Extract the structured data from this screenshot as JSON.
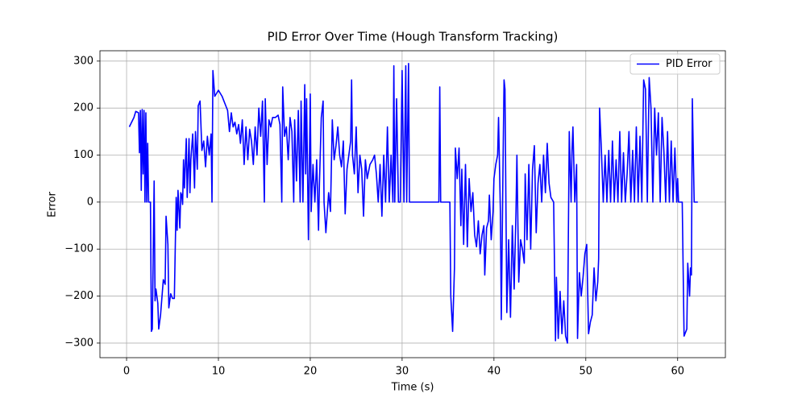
{
  "chart_data": {
    "type": "line",
    "title": "PID Error Over Time (Hough Transform Tracking)",
    "x_label": "Time (s)",
    "y_label": "Error",
    "x": [
      0.3,
      0.8,
      1.0,
      1.3,
      1.4,
      1.5,
      1.6,
      1.7,
      1.8,
      1.9,
      2.0,
      2.1,
      2.2,
      2.3,
      2.4,
      2.6,
      2.7,
      2.8,
      3.0,
      3.1,
      3.2,
      3.4,
      3.5,
      3.7,
      4.0,
      4.2,
      4.3,
      4.5,
      4.6,
      4.8,
      5.0,
      5.2,
      5.4,
      5.5,
      5.6,
      5.8,
      5.9,
      6.0,
      6.1,
      6.2,
      6.3,
      6.5,
      6.6,
      6.8,
      6.9,
      7.0,
      7.2,
      7.4,
      7.5,
      7.7,
      7.8,
      8.0,
      8.2,
      8.4,
      8.6,
      8.8,
      9.0,
      9.2,
      9.3,
      9.4,
      9.6,
      10.0,
      10.4,
      10.6,
      10.8,
      11.0,
      11.2,
      11.4,
      11.6,
      11.8,
      12.0,
      12.2,
      12.4,
      12.6,
      12.8,
      13.0,
      13.2,
      13.4,
      13.6,
      13.8,
      14.0,
      14.2,
      14.4,
      14.6,
      14.8,
      15.0,
      15.1,
      15.3,
      15.5,
      15.7,
      15.9,
      16.2,
      16.5,
      16.7,
      16.9,
      17.0,
      17.2,
      17.4,
      17.6,
      17.8,
      18.0,
      18.2,
      18.3,
      18.5,
      18.7,
      18.9,
      19.0,
      19.2,
      19.4,
      19.5,
      19.6,
      19.8,
      20.0,
      20.1,
      20.3,
      20.5,
      20.7,
      20.9,
      21.0,
      21.2,
      21.4,
      21.5,
      21.7,
      22.0,
      22.2,
      22.4,
      22.6,
      22.8,
      23.0,
      23.2,
      23.4,
      23.6,
      23.8,
      24.0,
      24.2,
      24.4,
      24.5,
      24.6,
      24.8,
      25.0,
      25.2,
      25.4,
      25.6,
      25.8,
      26.0,
      26.2,
      26.5,
      26.8,
      27.0,
      27.2,
      27.4,
      27.6,
      27.8,
      28.0,
      28.2,
      28.4,
      28.6,
      28.8,
      29.0,
      29.1,
      29.2,
      29.4,
      29.6,
      29.8,
      30.0,
      30.2,
      30.4,
      30.5,
      30.7,
      30.8,
      32.0,
      34.0,
      34.1,
      34.2,
      35.2,
      35.3,
      35.5,
      35.7,
      35.8,
      36.0,
      36.2,
      36.4,
      36.5,
      36.7,
      36.9,
      37.1,
      37.3,
      37.5,
      37.7,
      37.9,
      38.1,
      38.3,
      38.5,
      38.7,
      38.9,
      39.0,
      39.2,
      39.4,
      39.5,
      39.7,
      39.9,
      40.0,
      40.2,
      40.4,
      40.5,
      40.7,
      40.8,
      41.0,
      41.1,
      41.2,
      41.4,
      41.6,
      41.8,
      42.0,
      42.2,
      42.4,
      42.5,
      42.7,
      42.9,
      43.1,
      43.3,
      43.4,
      43.6,
      43.8,
      44.0,
      44.2,
      44.4,
      44.6,
      44.8,
      45.0,
      45.2,
      45.4,
      45.6,
      45.8,
      46.0,
      46.2,
      46.5,
      46.7,
      46.8,
      47.0,
      47.2,
      47.4,
      47.6,
      47.8,
      48.0,
      48.2,
      48.4,
      48.5,
      48.6,
      48.8,
      49.0,
      49.1,
      49.3,
      49.5,
      49.7,
      49.9,
      50.1,
      50.3,
      50.5,
      50.7,
      50.9,
      51.1,
      51.3,
      51.4,
      51.5,
      51.7,
      51.9,
      52.1,
      52.3,
      52.5,
      52.7,
      52.9,
      53.1,
      53.3,
      53.5,
      53.7,
      53.9,
      54.1,
      54.3,
      54.5,
      54.7,
      54.9,
      55.1,
      55.3,
      55.5,
      55.7,
      55.9,
      56.1,
      56.3,
      56.5,
      56.7,
      56.9,
      57.1,
      57.3,
      57.5,
      57.7,
      57.9,
      58.1,
      58.3,
      58.5,
      58.7,
      58.9,
      59.1,
      59.3,
      59.5,
      59.7,
      59.9,
      60.0,
      60.1,
      60.5,
      60.7,
      61.0,
      61.1,
      61.3,
      61.4,
      61.5,
      61.6,
      61.8,
      62.2
    ],
    "series": [
      {
        "name": "PID Error",
        "color": "#0000ff",
        "values": [
          160,
          180,
          193,
          190,
          105,
          195,
          25,
          197,
          60,
          195,
          0,
          190,
          0,
          125,
          0,
          0,
          -275,
          -270,
          45,
          -210,
          -185,
          -215,
          -270,
          -240,
          -165,
          -175,
          -30,
          -90,
          -225,
          -195,
          -205,
          -205,
          10,
          -60,
          25,
          -55,
          20,
          15,
          -5,
          90,
          30,
          135,
          10,
          135,
          20,
          90,
          145,
          30,
          150,
          70,
          205,
          215,
          110,
          130,
          75,
          140,
          100,
          145,
          0,
          280,
          225,
          238,
          225,
          215,
          205,
          195,
          150,
          190,
          160,
          170,
          145,
          165,
          125,
          175,
          80,
          160,
          90,
          155,
          130,
          80,
          160,
          100,
          200,
          140,
          215,
          0,
          220,
          80,
          175,
          160,
          180,
          180,
          185,
          165,
          0,
          245,
          140,
          160,
          90,
          180,
          150,
          0,
          175,
          45,
          195,
          0,
          215,
          0,
          250,
          60,
          220,
          -80,
          230,
          -20,
          80,
          0,
          90,
          -60,
          40,
          180,
          215,
          0,
          -65,
          20,
          -20,
          175,
          90,
          120,
          160,
          100,
          75,
          130,
          -25,
          70,
          100,
          130,
          260,
          100,
          60,
          160,
          20,
          100,
          70,
          -30,
          90,
          50,
          80,
          90,
          100,
          60,
          0,
          80,
          -30,
          100,
          0,
          160,
          0,
          100,
          0,
          290,
          0,
          220,
          0,
          0,
          280,
          0,
          290,
          0,
          295,
          0,
          0,
          0,
          245,
          0,
          0,
          -200,
          -275,
          -140,
          115,
          50,
          115,
          -50,
          70,
          -90,
          80,
          -95,
          50,
          -20,
          20,
          -70,
          -95,
          -40,
          -110,
          -70,
          -50,
          -155,
          -55,
          -40,
          15,
          -80,
          -20,
          50,
          80,
          100,
          180,
          -20,
          -250,
          100,
          260,
          240,
          -235,
          -80,
          -245,
          -50,
          -185,
          -20,
          100,
          -170,
          -80,
          -100,
          -130,
          60,
          -80,
          80,
          -100,
          70,
          120,
          -65,
          40,
          80,
          0,
          100,
          20,
          125,
          40,
          10,
          0,
          -295,
          -160,
          -290,
          -190,
          -280,
          -210,
          -285,
          -300,
          150,
          0,
          110,
          160,
          0,
          80,
          -290,
          -150,
          -200,
          -160,
          -110,
          -90,
          -280,
          -255,
          -240,
          -140,
          -210,
          -170,
          -120,
          200,
          110,
          0,
          100,
          0,
          110,
          0,
          130,
          0,
          90,
          0,
          150,
          0,
          105,
          0,
          60,
          150,
          0,
          110,
          0,
          160,
          0,
          140,
          0,
          260,
          240,
          0,
          265,
          200,
          0,
          200,
          100,
          190,
          0,
          180,
          110,
          0,
          150,
          0,
          130,
          0,
          115,
          0,
          50,
          0,
          0,
          -285,
          -270,
          -130,
          -200,
          -140,
          -155,
          220,
          0,
          0
        ]
      }
    ],
    "xlim": [
      -2.9,
      65.2
    ],
    "ylim": [
      -331,
      322
    ],
    "xticks": [
      0,
      10,
      20,
      30,
      40,
      50,
      60
    ],
    "yticks": [
      {
        "value": -300,
        "label": "−300"
      },
      {
        "value": -200,
        "label": "−200"
      },
      {
        "value": -100,
        "label": "−100"
      },
      0,
      100,
      200,
      300
    ],
    "grid": true,
    "legend": "upper right"
  }
}
